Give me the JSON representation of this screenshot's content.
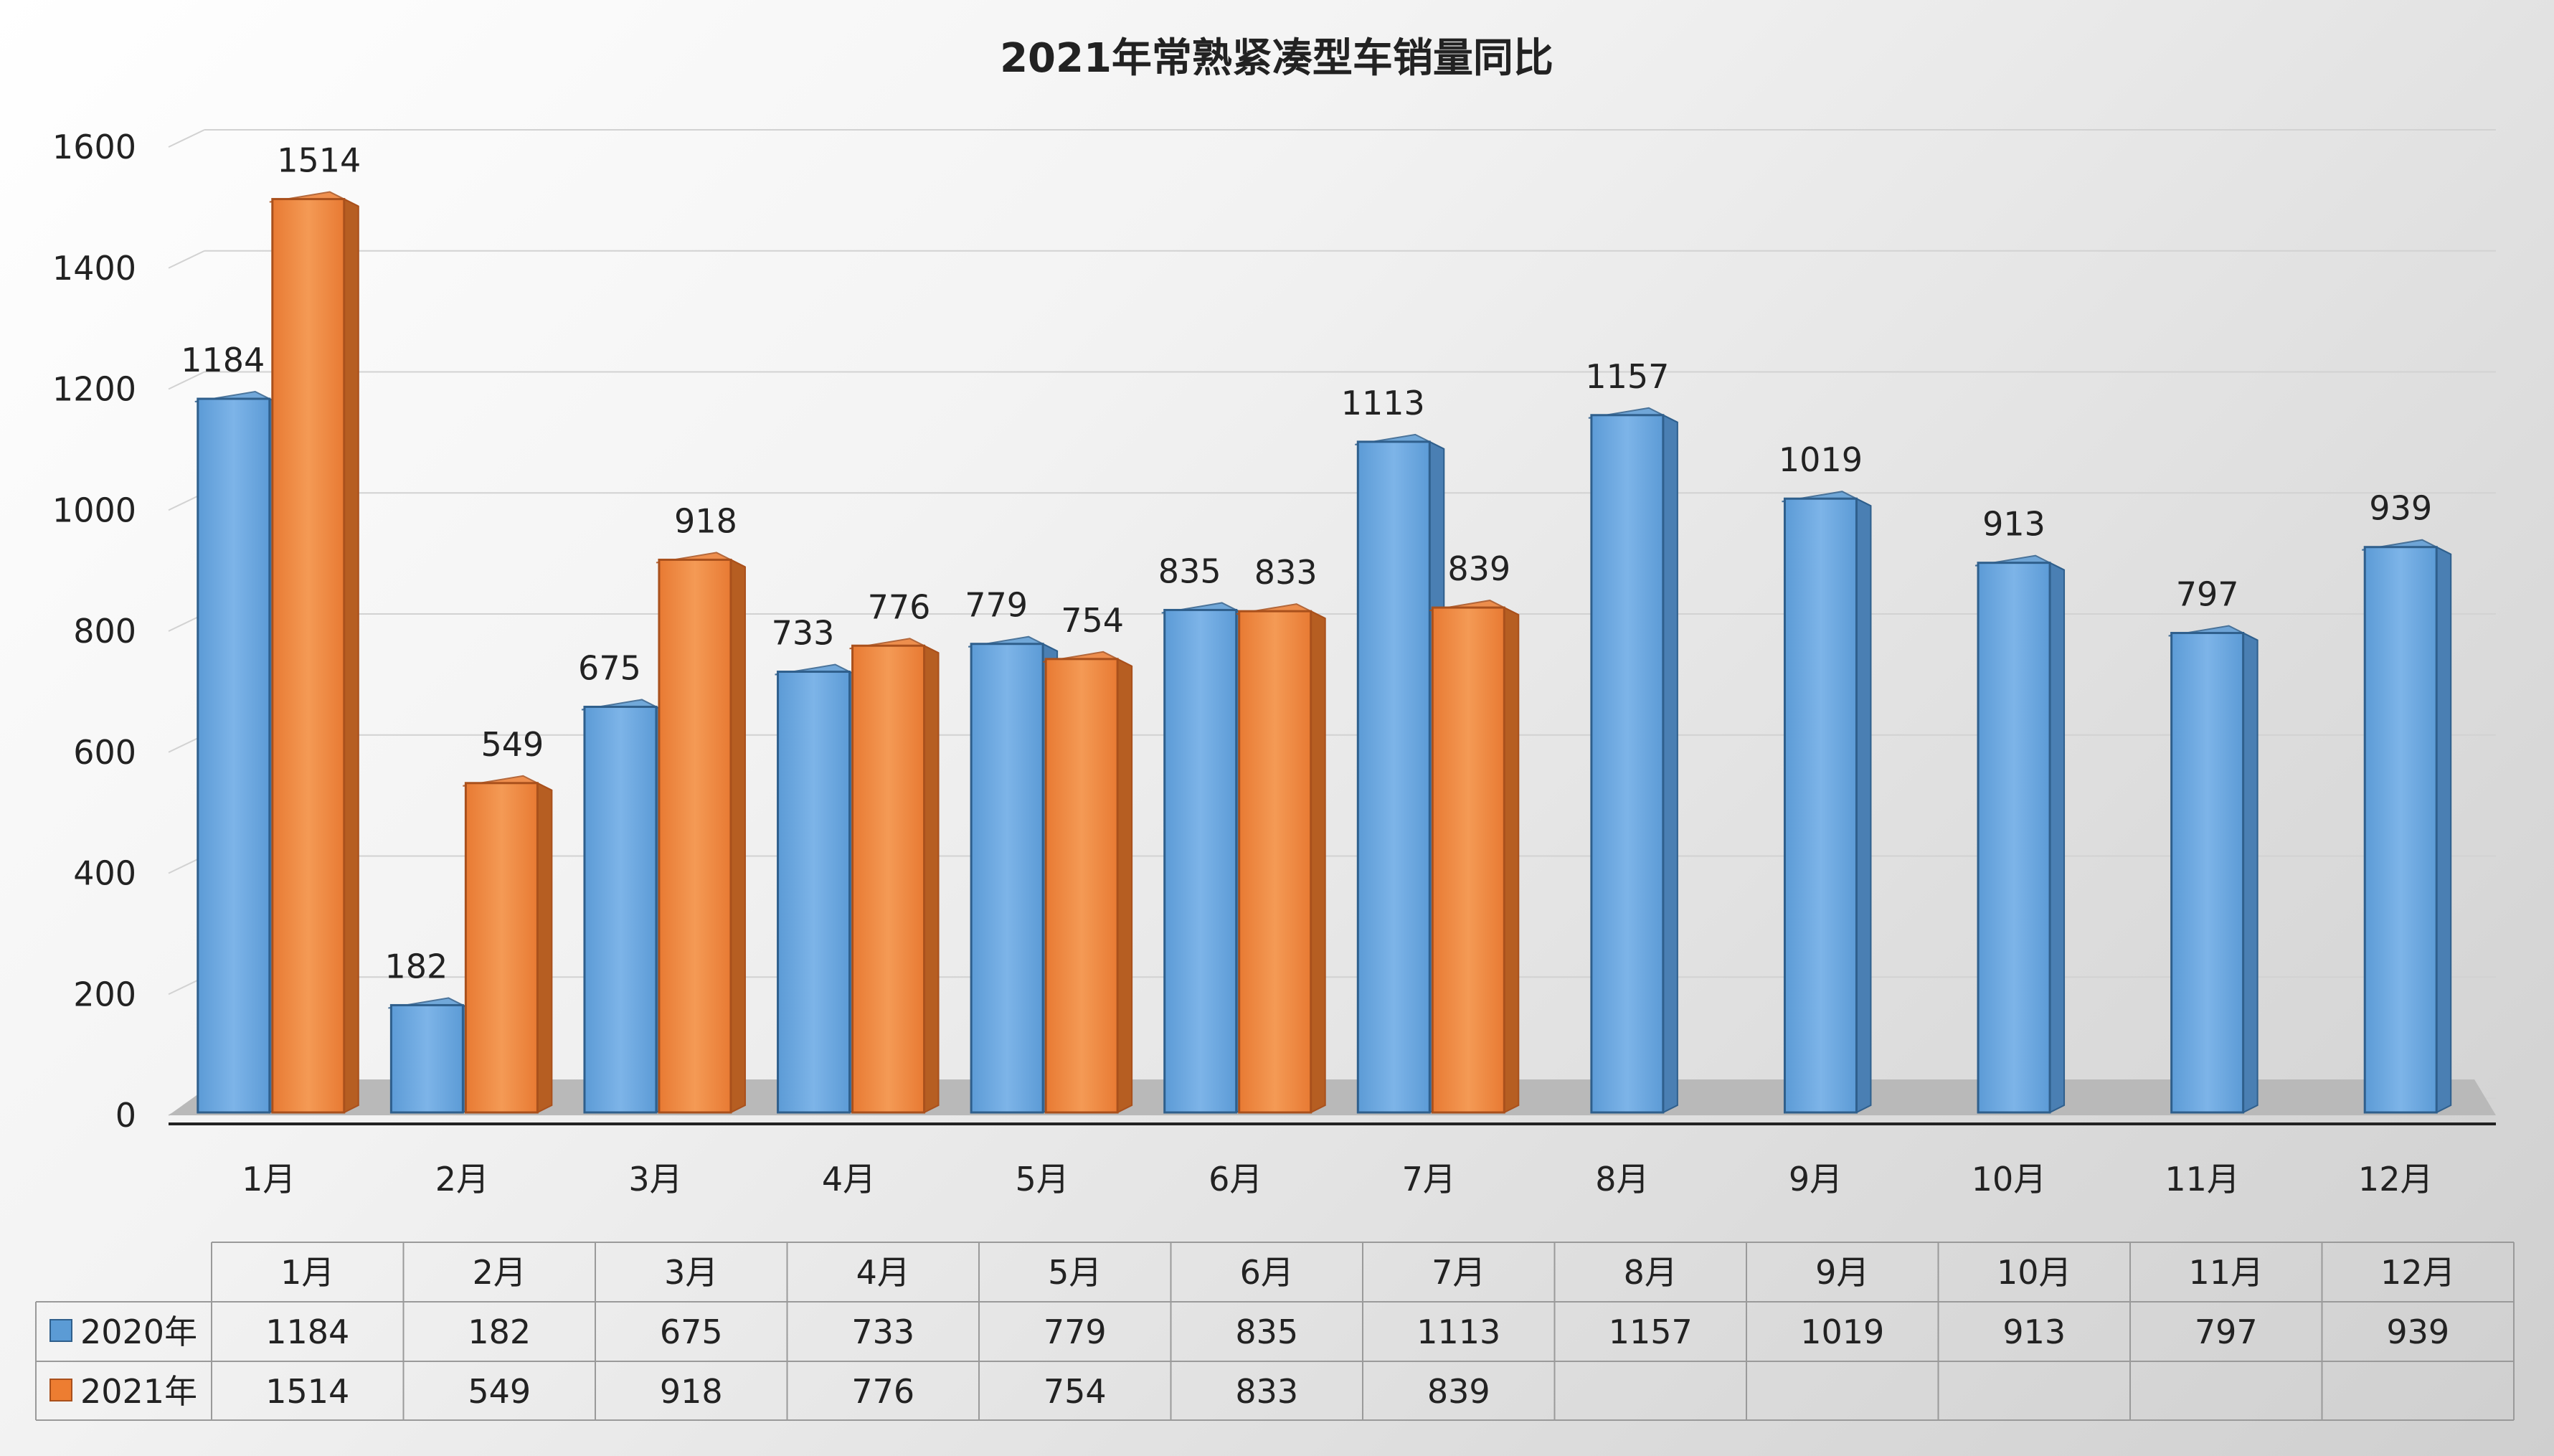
{
  "chart_data": {
    "type": "bar",
    "title": "2021年常熟紧凑型车销量同比",
    "categories": [
      "1月",
      "2月",
      "3月",
      "4月",
      "5月",
      "6月",
      "7月",
      "8月",
      "9月",
      "10月",
      "11月",
      "12月"
    ],
    "series": [
      {
        "name": "2020年",
        "color": "#5B9BD5",
        "values": [
          1184,
          182,
          675,
          733,
          779,
          835,
          1113,
          1157,
          1019,
          913,
          797,
          939
        ]
      },
      {
        "name": "2021年",
        "color": "#ED7D31",
        "values": [
          1514,
          549,
          918,
          776,
          754,
          833,
          839,
          null,
          null,
          null,
          null,
          null
        ]
      }
    ],
    "ylim": [
      0,
      1600
    ],
    "yticks": [
      0,
      200,
      400,
      600,
      800,
      1000,
      1200,
      1400,
      1600
    ],
    "grid": true,
    "legend": "data-table",
    "style": "3d-clustered-column"
  }
}
